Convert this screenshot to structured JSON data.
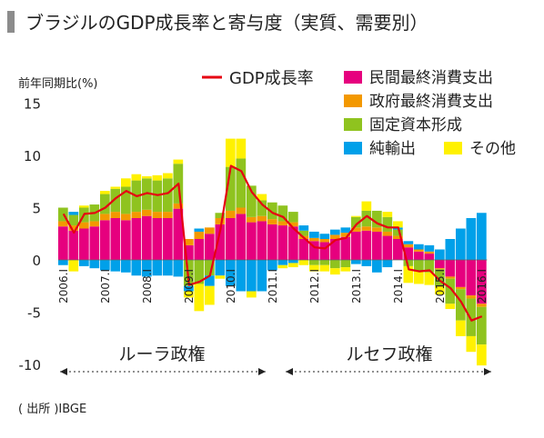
{
  "title": "ブラジルのGDP成長率と寄与度（実質、需要別）",
  "source": "( 出所 )IBGE",
  "eras": [
    {
      "label": "ルーラ政権"
    },
    {
      "label": "ルセフ政権"
    }
  ],
  "chart_data": {
    "type": "bar",
    "stacked": true,
    "ylabel": "前年同期比(%)",
    "ylim": [
      -10,
      15
    ],
    "yticks": [
      15,
      10,
      5,
      0,
      -5,
      -10
    ],
    "x": [
      "2006.I",
      "2006.II",
      "2006.III",
      "2006.IV",
      "2007.I",
      "2007.II",
      "2007.III",
      "2007.IV",
      "2008.I",
      "2008.II",
      "2008.III",
      "2008.IV",
      "2009.I",
      "2009.II",
      "2009.III",
      "2009.IV",
      "2010.I",
      "2010.II",
      "2010.III",
      "2010.IV",
      "2011.I",
      "2011.II",
      "2011.III",
      "2011.IV",
      "2012.I",
      "2012.II",
      "2012.III",
      "2012.IV",
      "2013.I",
      "2013.II",
      "2013.III",
      "2013.IV",
      "2014.I",
      "2014.II",
      "2014.III",
      "2014.IV",
      "2015.I",
      "2015.II",
      "2015.III",
      "2015.IV",
      "2016.I"
    ],
    "tick_labels": [
      "2006.I",
      "2007.I",
      "2008.I",
      "2009.I",
      "2010.I",
      "2011.I",
      "2012.I",
      "2013.I",
      "2014.I",
      "2015.I",
      "2016.I"
    ],
    "series": [
      {
        "name": "民間最終消費支出",
        "color": "#e6007e",
        "values": [
          3.2,
          2.8,
          3.0,
          3.2,
          3.8,
          4.0,
          3.8,
          4.0,
          4.2,
          4.0,
          4.0,
          4.9,
          1.4,
          2.0,
          2.5,
          3.4,
          4.0,
          4.4,
          3.6,
          3.7,
          3.4,
          3.3,
          3.2,
          2.0,
          1.8,
          1.7,
          2.0,
          2.2,
          2.7,
          2.8,
          2.7,
          2.3,
          2.0,
          1.2,
          0.8,
          0.6,
          -0.8,
          -1.6,
          -2.6,
          -3.4,
          -4.2
        ]
      },
      {
        "name": "政府最終消費支出",
        "color": "#f39800",
        "values": [
          0.5,
          0.5,
          0.6,
          0.5,
          0.6,
          0.6,
          0.6,
          0.6,
          0.6,
          0.6,
          0.6,
          0.5,
          0.6,
          0.7,
          0.6,
          0.6,
          0.7,
          0.6,
          0.5,
          0.5,
          0.5,
          0.4,
          0.4,
          0.3,
          0.3,
          0.3,
          0.4,
          0.4,
          0.4,
          0.4,
          0.4,
          0.4,
          0.3,
          0.3,
          0.2,
          0.2,
          -0.1,
          -0.2,
          -0.2,
          -0.3,
          -0.3
        ]
      },
      {
        "name": "固定資本形成",
        "color": "#8fc31f",
        "values": [
          1.3,
          1.0,
          1.4,
          1.6,
          1.9,
          2.2,
          2.6,
          3.0,
          3.0,
          3.0,
          3.2,
          3.8,
          -2.5,
          -2.3,
          -1.5,
          0.5,
          4.2,
          4.7,
          3.0,
          1.5,
          1.6,
          1.5,
          1.0,
          0.5,
          -0.5,
          -0.5,
          -0.8,
          -0.7,
          1.0,
          1.5,
          1.6,
          1.4,
          0.6,
          -0.6,
          -1.0,
          -1.2,
          -1.6,
          -2.4,
          -3.0,
          -3.6,
          -3.6
        ]
      },
      {
        "name": "純輸出",
        "color": "#00a0e9",
        "values": [
          -0.5,
          0.3,
          -0.6,
          -0.8,
          -1.0,
          -1.1,
          -1.2,
          -1.5,
          -1.6,
          -1.5,
          -1.5,
          -1.6,
          -0.5,
          0.3,
          -1.0,
          -1.5,
          -2.5,
          -3.0,
          -3.0,
          -3.0,
          -1.0,
          -0.5,
          -0.3,
          0.5,
          0.6,
          0.5,
          0.5,
          0.5,
          -0.4,
          -0.6,
          -1.2,
          -0.7,
          0.2,
          0.3,
          0.5,
          0.6,
          1.0,
          2.0,
          3.0,
          4.0,
          4.5
        ]
      },
      {
        "name": "その他",
        "color": "#fff100",
        "values": [
          0.0,
          -1.1,
          0.2,
          0.0,
          0.3,
          0.2,
          0.8,
          0.6,
          0.2,
          0.5,
          0.5,
          0.4,
          -0.6,
          -2.6,
          -1.8,
          -0.3,
          2.7,
          1.9,
          -0.6,
          0.6,
          0.0,
          -0.3,
          -0.4,
          -0.5,
          -0.6,
          -0.6,
          -0.6,
          -0.4,
          0.1,
          0.9,
          0.0,
          0.5,
          0.6,
          -1.6,
          -1.3,
          -1.2,
          -0.8,
          -0.5,
          -1.5,
          -1.5,
          -2.0
        ]
      }
    ],
    "line": {
      "name": "GDP成長率",
      "color": "#e60012",
      "values": [
        4.4,
        2.6,
        4.4,
        4.5,
        5.0,
        5.9,
        6.6,
        6.1,
        6.4,
        6.2,
        6.4,
        7.3,
        -2.4,
        -2.1,
        -1.5,
        2.9,
        9.0,
        8.5,
        6.5,
        5.3,
        4.5,
        4.1,
        3.0,
        2.1,
        1.2,
        1.1,
        1.9,
        2.1,
        3.4,
        4.2,
        3.5,
        3.1,
        3.1,
        -0.9,
        -1.1,
        -1.0,
        -2.0,
        -2.7,
        -4.0,
        -5.8,
        -5.4
      ]
    },
    "legend_position": "top-right"
  }
}
